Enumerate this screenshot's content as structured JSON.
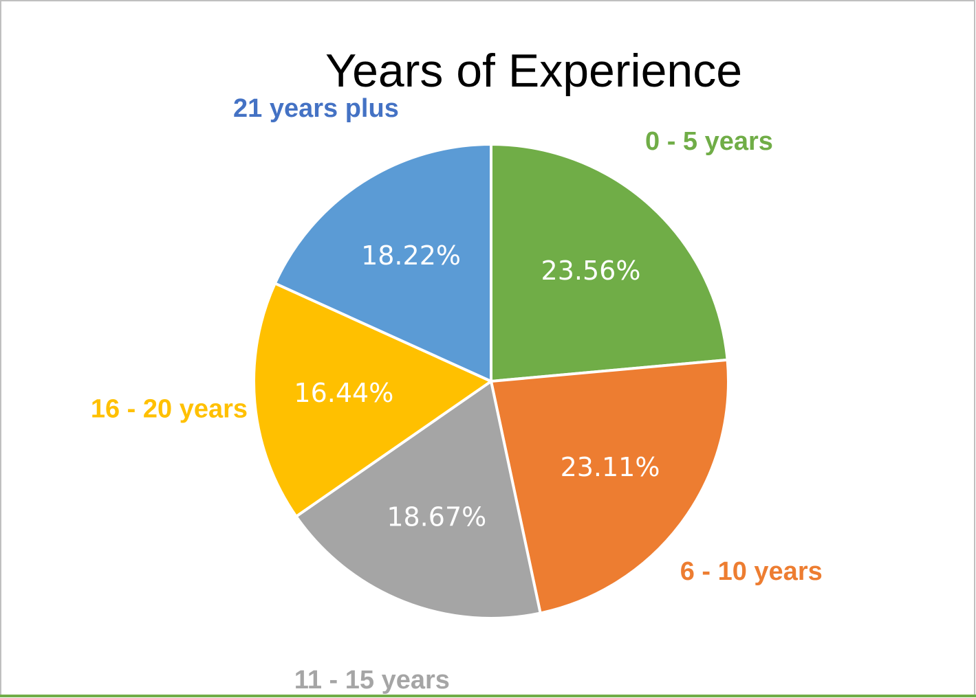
{
  "chart_data": {
    "type": "pie",
    "title": "Years of Experience",
    "categories": [
      "0 - 5 years",
      "6 - 10 years",
      "11 - 15 years",
      "16 - 20 years",
      "21 years plus"
    ],
    "values": [
      23.56,
      23.11,
      18.67,
      16.44,
      18.22
    ],
    "value_labels": [
      "23.56%",
      "23.11%",
      "18.67%",
      "16.44%",
      "18.22%"
    ],
    "colors": [
      "#70ad47",
      "#ed7d31",
      "#a5a5a5",
      "#ffc000",
      "#5b9bd5"
    ],
    "label_colors": [
      "#70ad47",
      "#ed7d31",
      "#a5a5a5",
      "#ffc000",
      "#4472c4"
    ]
  }
}
